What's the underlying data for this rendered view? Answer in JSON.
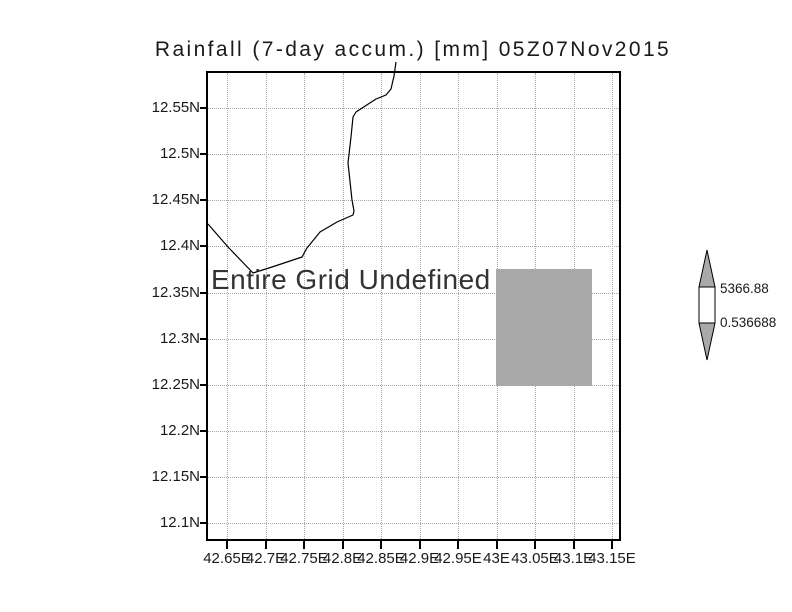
{
  "title": "Rainfall (7-day accum.) [mm] 05Z07Nov2015",
  "plot": {
    "message": "Entire Grid Undefined",
    "y_axis": {
      "labels": [
        "12.55N",
        "12.5N",
        "12.45N",
        "12.4N",
        "12.35N",
        "12.3N",
        "12.25N",
        "12.2N",
        "12.15N",
        "12.1N"
      ]
    },
    "x_axis": {
      "labels": [
        "42.65E",
        "42.7E",
        "42.75E",
        "42.8E",
        "42.85E",
        "42.9E",
        "42.95E",
        "43E",
        "43.05E",
        "43.1E",
        "43.15E"
      ]
    }
  },
  "colorbar": {
    "max_label": "5366.88",
    "min_label": "0.536688",
    "triangle_fill": "#a9a9a9",
    "box_fill": "#ffffff"
  },
  "colors": {
    "gridline": "#a6a6a6",
    "undefined_patch": "#a9a9a9",
    "coastline": "#000000",
    "axis": "#000000"
  },
  "chart_data": {
    "type": "heatmap",
    "title": "Rainfall (7-day accum.) [mm] 05Z07Nov2015",
    "variable": "Rainfall (7-day accum.)",
    "units": "mm",
    "valid_time": "05Z07Nov2015",
    "status_message": "Entire Grid Undefined",
    "values": "undefined (no data plotted)",
    "x_tick_labels": [
      "42.65E",
      "42.7E",
      "42.75E",
      "42.8E",
      "42.85E",
      "42.9E",
      "42.95E",
      "43E",
      "43.05E",
      "43.1E",
      "43.15E"
    ],
    "y_tick_labels": [
      "12.55N",
      "12.5N",
      "12.45N",
      "12.4N",
      "12.35N",
      "12.3N",
      "12.25N",
      "12.2N",
      "12.15N",
      "12.1N"
    ],
    "x_range_lon_E": [
      42.62,
      43.16
    ],
    "y_range_lat_N": [
      12.08,
      12.59
    ],
    "grid": "dotted",
    "legend_position": "right colorbar",
    "colorbar_min": 0.536688,
    "colorbar_max": 5366.88,
    "gray_patch_extent": {
      "lon_E": [
        43.0,
        43.125
      ],
      "lat_N": [
        12.25,
        12.375
      ]
    },
    "basemap": "coastline (Gulf of Tadjoura / Djibouti region)"
  }
}
